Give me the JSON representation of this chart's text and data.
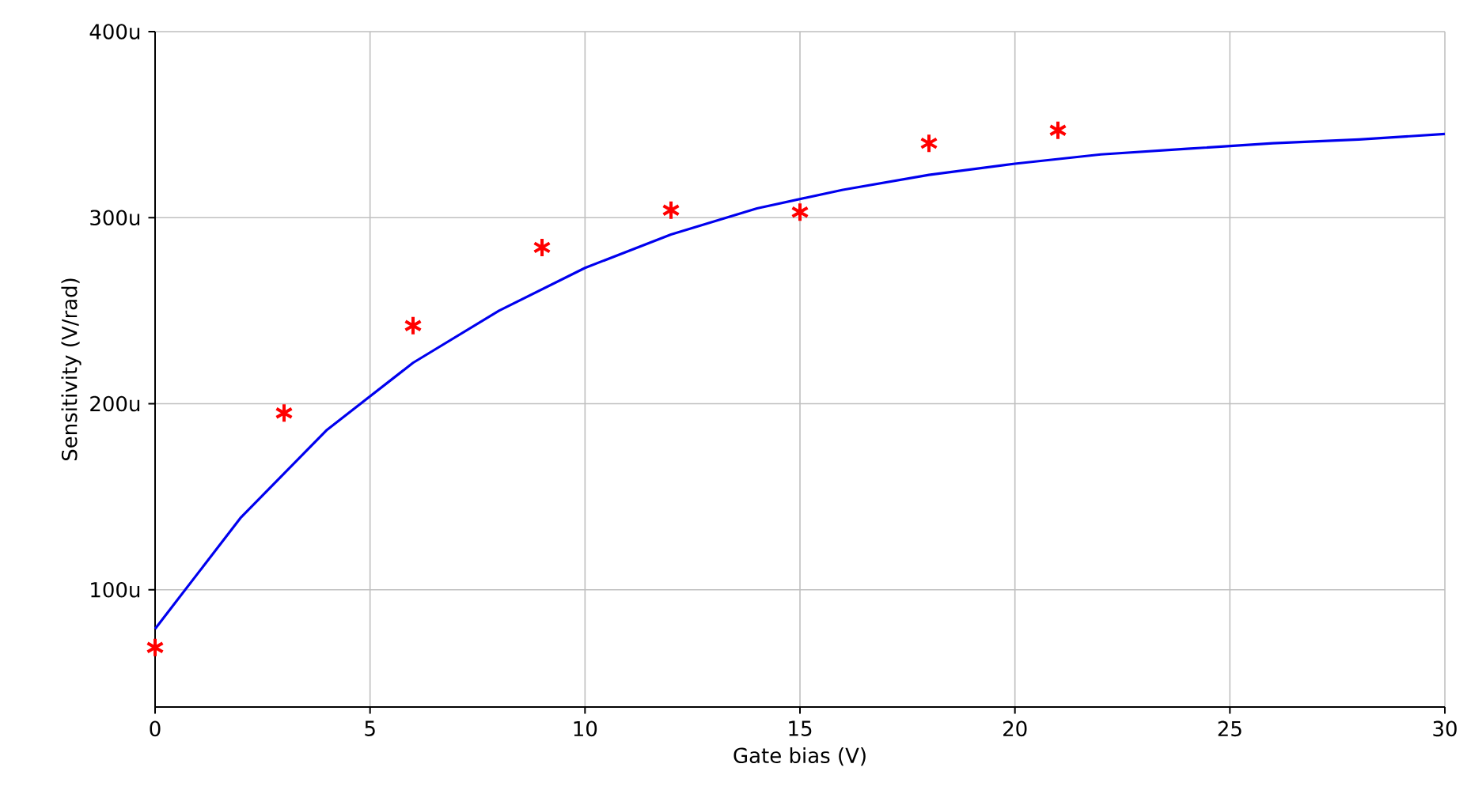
{
  "chart_data": {
    "type": "line",
    "xlabel": "Gate bias (V)",
    "ylabel": "Sensitivity (V/rad)",
    "xlim": [
      0,
      30
    ],
    "ylim": [
      37,
      400
    ],
    "xticks": [
      0,
      5,
      10,
      15,
      20,
      25,
      30
    ],
    "yticks": [
      {
        "value": 100,
        "label": "100u"
      },
      {
        "value": 200,
        "label": "200u"
      },
      {
        "value": 300,
        "label": "300u"
      },
      {
        "value": 400,
        "label": "400u"
      }
    ],
    "grid": true,
    "series": [
      {
        "type": "scatter",
        "color": "#ff0000",
        "marker": "cross",
        "x": [
          0,
          3,
          6,
          9,
          12,
          15,
          18,
          21
        ],
        "values": [
          69,
          195,
          242,
          284,
          304,
          303,
          340,
          347
        ]
      },
      {
        "color": "#0000ee",
        "marker": "none",
        "line_style": "solid",
        "x": [
          0,
          2,
          4,
          6,
          8,
          10,
          12,
          14,
          16,
          18,
          20,
          22,
          24,
          26,
          28,
          30
        ],
        "values": [
          79,
          139,
          186,
          222,
          250,
          273,
          291,
          305,
          315,
          323,
          329,
          334,
          337,
          340,
          342,
          345
        ]
      }
    ]
  }
}
